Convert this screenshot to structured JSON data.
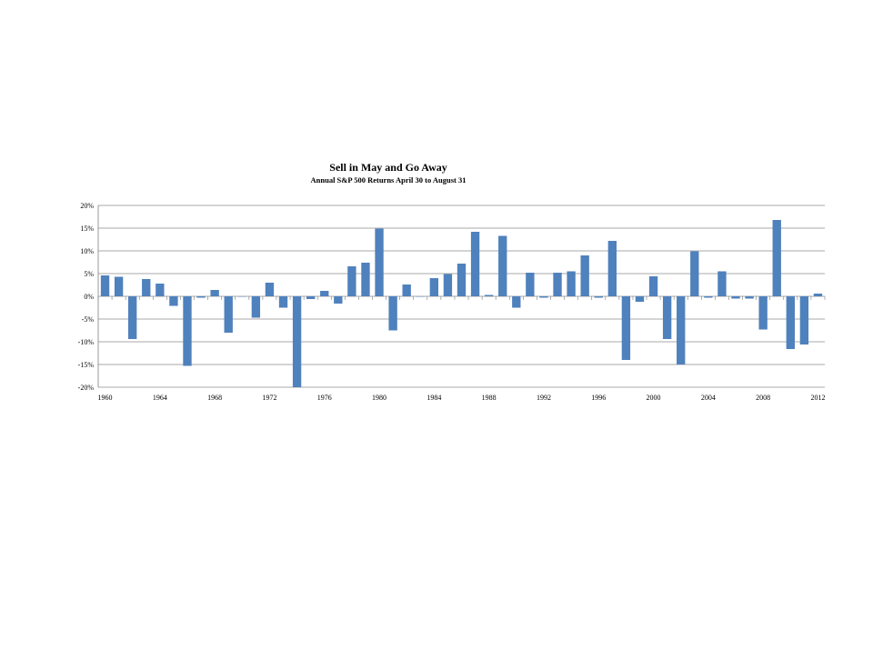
{
  "chart_data": {
    "type": "bar",
    "title": "Sell in May and Go  Away",
    "subtitle": "Annual S&P 500 Returns April 30 to August 31",
    "xlabel": "",
    "ylabel": "",
    "ylim": [
      -20,
      20
    ],
    "y_ticks": [
      20,
      15,
      10,
      5,
      0,
      -5,
      -10,
      -15,
      -20
    ],
    "y_tick_labels": [
      "20%",
      "15%",
      "10%",
      "5%",
      "0%",
      "-5%",
      "-10%",
      "-15%",
      "-20%"
    ],
    "x_tick_labels": [
      "1960",
      "1964",
      "1968",
      "1972",
      "1976",
      "1980",
      "1984",
      "1988",
      "1992",
      "1996",
      "2000",
      "2004",
      "2008",
      "2012"
    ],
    "grid": true,
    "legend": "none",
    "bar_color": "#4F81BD",
    "categories": [
      1960,
      1961,
      1962,
      1963,
      1964,
      1965,
      1966,
      1967,
      1968,
      1969,
      1970,
      1971,
      1972,
      1973,
      1974,
      1975,
      1976,
      1977,
      1978,
      1979,
      1980,
      1981,
      1982,
      1983,
      1984,
      1985,
      1986,
      1987,
      1988,
      1989,
      1990,
      1991,
      1992,
      1993,
      1994,
      1995,
      1996,
      1997,
      1998,
      1999,
      2000,
      2001,
      2002,
      2003,
      2004,
      2005,
      2006,
      2007,
      2008,
      2009,
      2010,
      2011,
      2012
    ],
    "values": [
      4.6,
      4.3,
      -9.4,
      3.8,
      2.8,
      -2.1,
      -15.3,
      -0.3,
      1.4,
      -8.0,
      0.0,
      -4.7,
      3.0,
      -2.5,
      -20.0,
      -0.6,
      1.2,
      -1.6,
      6.6,
      7.4,
      14.9,
      -7.5,
      2.6,
      0.0,
      4.0,
      4.9,
      7.2,
      14.2,
      0.3,
      13.3,
      -2.5,
      5.2,
      -0.3,
      5.2,
      5.5,
      9.0,
      -0.3,
      12.2,
      -14.0,
      -1.2,
      4.4,
      -9.4,
      -15.0,
      9.9,
      -0.3,
      5.5,
      -0.5,
      -0.5,
      -7.3,
      16.8,
      -11.6,
      -10.6,
      0.6
    ]
  }
}
